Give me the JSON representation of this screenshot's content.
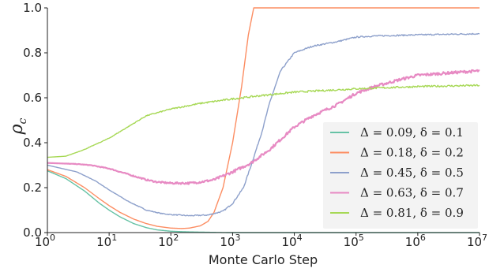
{
  "chart_data": {
    "type": "line",
    "x_scale": "log",
    "xlabel": "Monte Carlo Step",
    "ylabel": "ρ",
    "ylabel_sub": "c",
    "xlim": [
      1,
      10000000
    ],
    "ylim": [
      0,
      1.0
    ],
    "x_ticks": [
      {
        "value": 1,
        "base": "10",
        "exp": "0"
      },
      {
        "value": 10,
        "base": "10",
        "exp": "1"
      },
      {
        "value": 100,
        "base": "10",
        "exp": "2"
      },
      {
        "value": 1000,
        "base": "10",
        "exp": "3"
      },
      {
        "value": 10000,
        "base": "10",
        "exp": "4"
      },
      {
        "value": 100000,
        "base": "10",
        "exp": "5"
      },
      {
        "value": 1000000,
        "base": "10",
        "exp": "6"
      },
      {
        "value": 10000000,
        "base": "10",
        "exp": "7"
      }
    ],
    "y_ticks": [
      "0.0",
      "0.2",
      "0.4",
      "0.6",
      "0.8",
      "1.0"
    ],
    "grid": false,
    "legend_position": "right",
    "series": [
      {
        "name": "Δ = 0.09,  δ = 0.1",
        "color": "#66c2a5",
        "noise": 0,
        "points": [
          [
            1,
            0.275
          ],
          [
            2,
            0.24
          ],
          [
            4,
            0.185
          ],
          [
            7,
            0.13
          ],
          [
            10,
            0.1
          ],
          [
            15,
            0.07
          ],
          [
            25,
            0.04
          ],
          [
            40,
            0.022
          ],
          [
            60,
            0.012
          ],
          [
            100,
            0.006
          ],
          [
            150,
            0.004
          ],
          [
            200,
            0.003
          ],
          [
            300,
            0.002
          ],
          [
            500,
            0.001
          ],
          [
            800,
            0.0
          ],
          [
            10000000,
            0.0
          ]
        ]
      },
      {
        "name": "Δ = 0.18,  δ = 0.2",
        "color": "#fc8d62",
        "noise": 0,
        "points": [
          [
            1,
            0.28
          ],
          [
            2,
            0.25
          ],
          [
            4,
            0.2
          ],
          [
            7,
            0.15
          ],
          [
            10,
            0.12
          ],
          [
            15,
            0.09
          ],
          [
            25,
            0.06
          ],
          [
            40,
            0.04
          ],
          [
            60,
            0.028
          ],
          [
            100,
            0.02
          ],
          [
            150,
            0.018
          ],
          [
            200,
            0.02
          ],
          [
            300,
            0.03
          ],
          [
            400,
            0.05
          ],
          [
            500,
            0.09
          ],
          [
            700,
            0.2
          ],
          [
            1000,
            0.4
          ],
          [
            1400,
            0.65
          ],
          [
            1800,
            0.88
          ],
          [
            2200,
            1.0
          ],
          [
            10000000,
            1.0
          ]
        ]
      },
      {
        "name": "Δ = 0.45,  δ = 0.5",
        "color": "#8da0cb",
        "noise": 0.003,
        "points": [
          [
            1,
            0.3
          ],
          [
            3,
            0.27
          ],
          [
            6,
            0.23
          ],
          [
            10,
            0.19
          ],
          [
            20,
            0.14
          ],
          [
            40,
            0.1
          ],
          [
            70,
            0.085
          ],
          [
            100,
            0.08
          ],
          [
            200,
            0.075
          ],
          [
            400,
            0.078
          ],
          [
            700,
            0.095
          ],
          [
            1000,
            0.13
          ],
          [
            1500,
            0.2
          ],
          [
            2000,
            0.3
          ],
          [
            3000,
            0.45
          ],
          [
            4000,
            0.58
          ],
          [
            6000,
            0.72
          ],
          [
            10000,
            0.8
          ],
          [
            20000,
            0.83
          ],
          [
            50000,
            0.85
          ],
          [
            100000,
            0.87
          ],
          [
            200000,
            0.875
          ],
          [
            1000000,
            0.88
          ],
          [
            10000000,
            0.885
          ]
        ]
      },
      {
        "name": "Δ = 0.63,  δ = 0.7",
        "color": "#e78ac3",
        "noise": 0.006,
        "points": [
          [
            1,
            0.31
          ],
          [
            3,
            0.305
          ],
          [
            5,
            0.3
          ],
          [
            10,
            0.285
          ],
          [
            20,
            0.26
          ],
          [
            40,
            0.235
          ],
          [
            60,
            0.225
          ],
          [
            100,
            0.22
          ],
          [
            200,
            0.22
          ],
          [
            300,
            0.225
          ],
          [
            500,
            0.235
          ],
          [
            1000,
            0.27
          ],
          [
            2000,
            0.31
          ],
          [
            4000,
            0.37
          ],
          [
            10000,
            0.47
          ],
          [
            20000,
            0.52
          ],
          [
            50000,
            0.57
          ],
          [
            100000,
            0.62
          ],
          [
            200000,
            0.65
          ],
          [
            500000,
            0.68
          ],
          [
            1000000,
            0.7
          ],
          [
            3000000,
            0.71
          ],
          [
            10000000,
            0.72
          ]
        ]
      },
      {
        "name": "Δ = 0.81,  δ = 0.9",
        "color": "#a6d854",
        "noise": 0.004,
        "points": [
          [
            1,
            0.335
          ],
          [
            2,
            0.34
          ],
          [
            4,
            0.37
          ],
          [
            10,
            0.42
          ],
          [
            20,
            0.47
          ],
          [
            40,
            0.52
          ],
          [
            100,
            0.55
          ],
          [
            300,
            0.575
          ],
          [
            1000,
            0.595
          ],
          [
            3000,
            0.61
          ],
          [
            10000,
            0.625
          ],
          [
            100000,
            0.64
          ],
          [
            1000000,
            0.65
          ],
          [
            10000000,
            0.655
          ]
        ]
      }
    ]
  }
}
